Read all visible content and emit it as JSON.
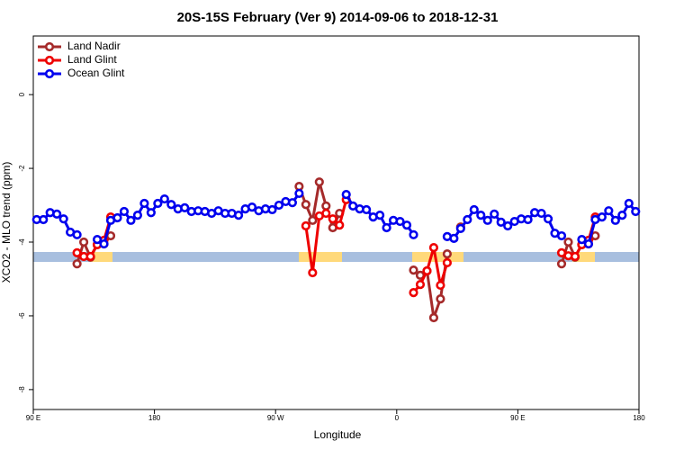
{
  "chart_data": {
    "type": "line",
    "title": "20S-15S February (Ver 9)   2014-09-06 to 2018-12-31",
    "x_label": "Longitude",
    "y_label": "XCO2 - MLO trend (ppm)",
    "xlim": [
      90,
      540
    ],
    "ylim": [
      -8.54,
      1.59
    ],
    "xticks": [
      {
        "value": 90,
        "label": "90 E"
      },
      180,
      {
        "value": 270,
        "label": "90 W"
      },
      {
        "value": 360,
        "label": "0"
      },
      {
        "value": 450,
        "label": "90 E"
      },
      {
        "value": 540,
        "label": "180"
      }
    ],
    "yticks": [
      0,
      -2,
      -4,
      -6,
      -8
    ],
    "legend": "top-left",
    "x": [
      92.5,
      97.5,
      102.5,
      107.5,
      112.5,
      117.5,
      122.5,
      127.5,
      132.5,
      137.5,
      142.5,
      147.5,
      152.5,
      157.5,
      162.5,
      167.5,
      172.5,
      177.5,
      182.5,
      187.5,
      192.5,
      197.5,
      202.5,
      207.5,
      212.5,
      217.5,
      222.5,
      227.5,
      232.5,
      237.5,
      242.5,
      247.5,
      252.5,
      257.5,
      262.5,
      267.5,
      272.5,
      277.5,
      282.5,
      287.5,
      292.5,
      297.5,
      302.5,
      307.5,
      312.5,
      317.5,
      322.5,
      327.5,
      332.5,
      337.5,
      342.5,
      347.5,
      352.5,
      357.5,
      362.5,
      367.5,
      372.5,
      377.5,
      382.5,
      387.5,
      392.5,
      397.5,
      402.5,
      407.5,
      412.5,
      417.5,
      422.5,
      427.5,
      432.5,
      437.5,
      442.5,
      447.5,
      452.5,
      457.5,
      462.5,
      467.5,
      472.5,
      477.5,
      482.5,
      487.5,
      492.5,
      497.5,
      502.5,
      507.5,
      512.5,
      517.5,
      522.5,
      527.5,
      532.5,
      537.5
    ],
    "series": [
      {
        "name": "Land Nadir",
        "color": "#a52a2a",
        "values": [
          null,
          null,
          null,
          null,
          null,
          null,
          -4.59,
          -4.0,
          -4.41,
          -4.07,
          -4.05,
          -3.83,
          null,
          null,
          null,
          null,
          null,
          null,
          null,
          null,
          null,
          null,
          null,
          null,
          null,
          null,
          null,
          null,
          null,
          null,
          null,
          null,
          null,
          null,
          null,
          null,
          null,
          null,
          null,
          -2.49,
          -2.98,
          -3.41,
          -2.37,
          -3.02,
          -3.61,
          -3.22,
          null,
          null,
          null,
          null,
          null,
          null,
          null,
          null,
          null,
          null,
          -4.76,
          -4.9,
          -4.78,
          -6.05,
          -5.54,
          -4.32,
          null,
          -3.59,
          null,
          null,
          null,
          null,
          null,
          null,
          null,
          null,
          null,
          null,
          null,
          null,
          null,
          null,
          -4.59,
          -4.0,
          -4.41,
          -4.07,
          -4.05,
          -3.83,
          null,
          null,
          null,
          null,
          null,
          null
        ]
      },
      {
        "name": "Land Glint",
        "color": "#ee0000",
        "values": [
          null,
          null,
          null,
          null,
          null,
          null,
          -4.29,
          -4.39,
          -4.39,
          -4.07,
          -3.95,
          -3.32,
          null,
          null,
          null,
          null,
          null,
          null,
          null,
          null,
          null,
          null,
          null,
          null,
          null,
          null,
          null,
          null,
          null,
          null,
          null,
          null,
          null,
          null,
          null,
          null,
          null,
          null,
          null,
          null,
          -3.56,
          -4.83,
          -3.29,
          -3.22,
          -3.37,
          -3.54,
          -2.85,
          null,
          null,
          null,
          null,
          null,
          null,
          null,
          null,
          null,
          -5.37,
          -5.15,
          -4.78,
          -4.15,
          -5.17,
          -4.56,
          null,
          null,
          null,
          null,
          null,
          null,
          null,
          null,
          null,
          null,
          null,
          null,
          null,
          null,
          null,
          null,
          -4.29,
          -4.37,
          -4.39,
          -4.07,
          -3.95,
          -3.32,
          null,
          null,
          null,
          null,
          null,
          null
        ]
      },
      {
        "name": "Ocean Glint",
        "color": "#0000ee",
        "values": [
          -3.39,
          -3.39,
          -3.2,
          -3.24,
          -3.37,
          -3.73,
          -3.8,
          null,
          null,
          -3.93,
          -4.05,
          -3.41,
          -3.34,
          -3.17,
          -3.41,
          -3.27,
          -2.95,
          -3.2,
          -2.95,
          -2.83,
          -2.98,
          -3.1,
          -3.07,
          -3.17,
          -3.15,
          -3.17,
          -3.22,
          -3.15,
          -3.22,
          -3.22,
          -3.27,
          -3.1,
          -3.05,
          -3.15,
          -3.1,
          -3.12,
          -3.0,
          -2.9,
          -2.93,
          -2.68,
          null,
          null,
          null,
          null,
          null,
          null,
          -2.71,
          -3.02,
          -3.1,
          -3.12,
          -3.32,
          -3.27,
          -3.61,
          -3.41,
          -3.44,
          -3.54,
          -3.8,
          null,
          null,
          null,
          null,
          -3.85,
          -3.9,
          -3.63,
          -3.39,
          -3.12,
          -3.27,
          -3.41,
          -3.24,
          -3.46,
          -3.56,
          -3.44,
          -3.37,
          -3.39,
          -3.2,
          -3.22,
          -3.37,
          -3.76,
          -3.83,
          null,
          null,
          -3.93,
          -4.05,
          -3.39,
          -3.32,
          -3.15,
          -3.41,
          -3.27,
          -2.95,
          -3.17
        ]
      }
    ]
  }
}
